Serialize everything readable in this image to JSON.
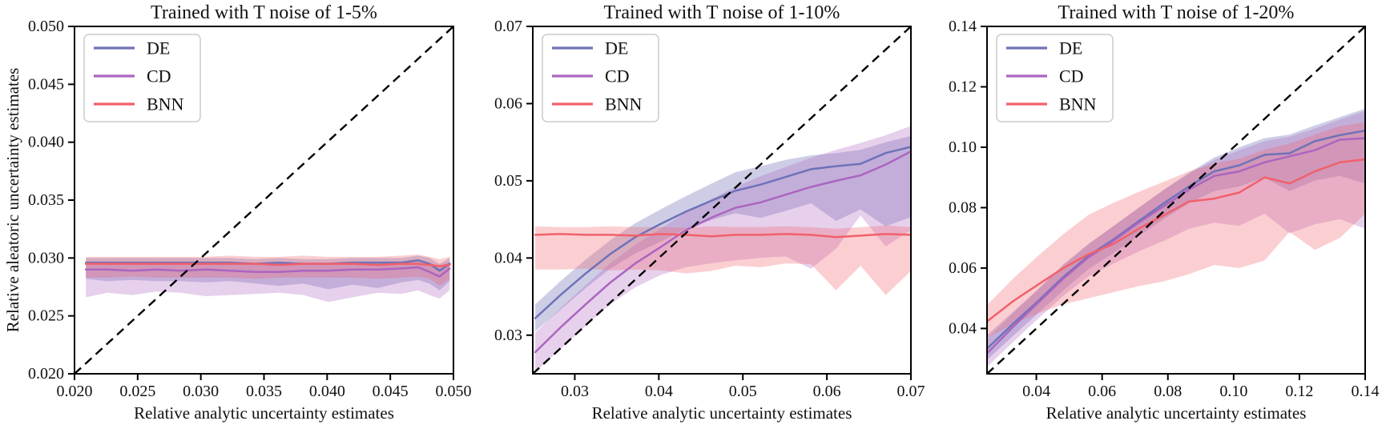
{
  "figure": {
    "background": "#ffffff",
    "text_color": "#111111",
    "axis_color": "#000000",
    "diagonal_color": "#000000"
  },
  "legend": {
    "entries": [
      {
        "label": "DE",
        "color": "#6f72b8"
      },
      {
        "label": "CD",
        "color": "#ab65bf"
      },
      {
        "label": "BNN",
        "color": "#f2606b"
      }
    ]
  },
  "chart_data": [
    {
      "type": "line",
      "title": "Trained with T noise of 1-5%",
      "xlabel": "Relative analytic uncertainty estimates",
      "ylabel": "Relative aleatoric uncertainty estimates",
      "xlim": [
        0.02,
        0.05
      ],
      "ylim": [
        0.02,
        0.05
      ],
      "grid": false,
      "legend_position": "upper-left",
      "diagonal_line": "dashed y=x",
      "xticks": {
        "values": [
          0.02,
          0.025,
          0.03,
          0.035,
          0.04,
          0.045,
          0.05
        ],
        "labels": [
          "0.020",
          "0.025",
          "0.030",
          "0.035",
          "0.040",
          "0.045",
          "0.050"
        ]
      },
      "yticks": {
        "values": [
          0.02,
          0.025,
          0.03,
          0.035,
          0.04,
          0.045,
          0.05
        ],
        "labels": [
          "0.020",
          "0.025",
          "0.030",
          "0.035",
          "0.040",
          "0.045",
          "0.050"
        ]
      },
      "x": [
        0.0209,
        0.0226,
        0.0246,
        0.0265,
        0.0284,
        0.0304,
        0.0323,
        0.0343,
        0.0362,
        0.0381,
        0.0401,
        0.042,
        0.044,
        0.0459,
        0.0472,
        0.0481,
        0.0489,
        0.0497
      ],
      "series": [
        {
          "name": "DE",
          "color": "#6f72b8",
          "band_opacity": 0.35,
          "y": [
            0.0296,
            0.0296,
            0.0296,
            0.0296,
            0.0296,
            0.0296,
            0.0296,
            0.0295,
            0.0296,
            0.0295,
            0.0295,
            0.0296,
            0.0296,
            0.0296,
            0.0298,
            0.0295,
            0.0289,
            0.0295
          ],
          "band_upper": [
            0.03,
            0.03,
            0.03,
            0.03,
            0.03,
            0.03,
            0.03,
            0.0299,
            0.03,
            0.0299,
            0.0299,
            0.03,
            0.03,
            0.03,
            0.0302,
            0.03,
            0.0295,
            0.03
          ],
          "band_lower": [
            0.0282,
            0.028,
            0.0281,
            0.028,
            0.028,
            0.0279,
            0.028,
            0.0278,
            0.0276,
            0.0278,
            0.0273,
            0.0277,
            0.0274,
            0.0279,
            0.0281,
            0.0278,
            0.0272,
            0.028
          ]
        },
        {
          "name": "CD",
          "color": "#ab65bf",
          "band_opacity": 0.3,
          "y": [
            0.029,
            0.029,
            0.0289,
            0.029,
            0.0289,
            0.029,
            0.0289,
            0.0288,
            0.0288,
            0.0289,
            0.0289,
            0.029,
            0.029,
            0.0291,
            0.0292,
            0.0288,
            0.0284,
            0.0291
          ],
          "band_upper": [
            0.0297,
            0.0297,
            0.0296,
            0.0297,
            0.0296,
            0.0297,
            0.0296,
            0.0296,
            0.0296,
            0.0296,
            0.0296,
            0.0297,
            0.0297,
            0.0297,
            0.0298,
            0.0296,
            0.0293,
            0.0297
          ],
          "band_lower": [
            0.0266,
            0.027,
            0.0268,
            0.0271,
            0.027,
            0.0267,
            0.0268,
            0.0269,
            0.027,
            0.0268,
            0.0262,
            0.0266,
            0.027,
            0.0269,
            0.0272,
            0.0268,
            0.0265,
            0.0272
          ]
        },
        {
          "name": "BNN",
          "color": "#f2606b",
          "band_opacity": 0.3,
          "y": [
            0.0295,
            0.0295,
            0.0295,
            0.0295,
            0.0295,
            0.0295,
            0.0295,
            0.0295,
            0.0294,
            0.0295,
            0.0295,
            0.0295,
            0.0294,
            0.0295,
            0.0295,
            0.0294,
            0.0293,
            0.0294
          ],
          "band_upper": [
            0.0301,
            0.0301,
            0.0301,
            0.0301,
            0.0301,
            0.0301,
            0.0302,
            0.0301,
            0.0301,
            0.0302,
            0.0301,
            0.0301,
            0.0301,
            0.0302,
            0.0303,
            0.0301,
            0.0299,
            0.0301
          ],
          "band_lower": [
            0.0283,
            0.0283,
            0.0284,
            0.0283,
            0.0283,
            0.0283,
            0.0283,
            0.0282,
            0.0283,
            0.0283,
            0.0283,
            0.0283,
            0.0282,
            0.0283,
            0.0284,
            0.0282,
            0.0276,
            0.0282
          ]
        }
      ]
    },
    {
      "type": "line",
      "title": "Trained with T noise of 1-10%",
      "xlabel": "Relative analytic uncertainty estimates",
      "ylabel": "",
      "xlim": [
        0.025,
        0.07
      ],
      "ylim": [
        0.025,
        0.07
      ],
      "grid": false,
      "legend_position": "upper-left",
      "diagonal_line": "dashed y=x",
      "xticks": {
        "values": [
          0.03,
          0.04,
          0.05,
          0.06,
          0.07
        ],
        "labels": [
          "0.03",
          "0.04",
          "0.05",
          "0.06",
          "0.07"
        ]
      },
      "yticks": {
        "values": [
          0.03,
          0.04,
          0.05,
          0.06,
          0.07
        ],
        "labels": [
          "0.03",
          "0.04",
          "0.05",
          "0.06",
          "0.07"
        ]
      },
      "x": [
        0.0253,
        0.0283,
        0.0313,
        0.0342,
        0.0372,
        0.0402,
        0.0432,
        0.0462,
        0.0491,
        0.0521,
        0.0551,
        0.0581,
        0.0611,
        0.064,
        0.067,
        0.07
      ],
      "series": [
        {
          "name": "DE",
          "color": "#6f72b8",
          "band_opacity": 0.35,
          "y": [
            0.0322,
            0.0352,
            0.038,
            0.0405,
            0.0427,
            0.0444,
            0.046,
            0.0474,
            0.0487,
            0.0495,
            0.0505,
            0.0515,
            0.0519,
            0.0522,
            0.0536,
            0.0544
          ],
          "band_upper": [
            0.034,
            0.037,
            0.0398,
            0.0423,
            0.0445,
            0.0463,
            0.048,
            0.0496,
            0.0511,
            0.0519,
            0.0527,
            0.0533,
            0.0536,
            0.054,
            0.055,
            0.0558
          ],
          "band_lower": [
            0.0305,
            0.0333,
            0.0361,
            0.0386,
            0.0406,
            0.0421,
            0.0438,
            0.0449,
            0.0458,
            0.0452,
            0.0461,
            0.0471,
            0.0448,
            0.0463,
            0.0441,
            0.0453
          ]
        },
        {
          "name": "CD",
          "color": "#ab65bf",
          "band_opacity": 0.3,
          "y": [
            0.0278,
            0.031,
            0.034,
            0.0368,
            0.0393,
            0.0414,
            0.0436,
            0.0452,
            0.0465,
            0.0472,
            0.0482,
            0.0492,
            0.05,
            0.0507,
            0.0521,
            0.0538
          ],
          "band_upper": [
            0.0303,
            0.0335,
            0.0365,
            0.0393,
            0.0417,
            0.0438,
            0.0459,
            0.0476,
            0.0492,
            0.0506,
            0.0518,
            0.053,
            0.054,
            0.0549,
            0.0559,
            0.0571
          ],
          "band_lower": [
            0.0252,
            0.0282,
            0.0312,
            0.034,
            0.0362,
            0.0378,
            0.0388,
            0.0393,
            0.0397,
            0.04,
            0.0402,
            0.0386,
            0.0412,
            0.0455,
            0.0415,
            0.0436
          ]
        },
        {
          "name": "BNN",
          "color": "#f2606b",
          "band_opacity": 0.3,
          "y": [
            0.043,
            0.0431,
            0.043,
            0.043,
            0.0429,
            0.0431,
            0.043,
            0.0428,
            0.043,
            0.043,
            0.0431,
            0.043,
            0.0427,
            0.0429,
            0.0431,
            0.043
          ],
          "band_upper": [
            0.0441,
            0.044,
            0.044,
            0.0441,
            0.044,
            0.044,
            0.0439,
            0.0441,
            0.044,
            0.044,
            0.0441,
            0.044,
            0.0438,
            0.044,
            0.0442,
            0.044
          ],
          "band_lower": [
            0.0385,
            0.0385,
            0.0386,
            0.0384,
            0.0385,
            0.0384,
            0.038,
            0.0383,
            0.039,
            0.0388,
            0.0393,
            0.0392,
            0.0358,
            0.039,
            0.0352,
            0.0383
          ]
        }
      ]
    },
    {
      "type": "line",
      "title": "Trained with T noise of 1-20%",
      "xlabel": "Relative analytic uncertainty estimates",
      "ylabel": "",
      "xlim": [
        0.025,
        0.14
      ],
      "ylim": [
        0.025,
        0.14
      ],
      "grid": false,
      "legend_position": "upper-left",
      "diagonal_line": "dashed y=x",
      "xticks": {
        "values": [
          0.04,
          0.06,
          0.08,
          0.1,
          0.12,
          0.14
        ],
        "labels": [
          "0.04",
          "0.06",
          "0.08",
          "0.10",
          "0.12",
          "0.14"
        ]
      },
      "yticks": {
        "values": [
          0.04,
          0.06,
          0.08,
          0.1,
          0.12,
          0.14
        ],
        "labels": [
          "0.04",
          "0.06",
          "0.08",
          "0.10",
          "0.12",
          "0.14"
        ]
      },
      "x": [
        0.0252,
        0.0329,
        0.0405,
        0.0482,
        0.0558,
        0.0635,
        0.0711,
        0.0788,
        0.0864,
        0.0941,
        0.1017,
        0.1094,
        0.117,
        0.1247,
        0.1323,
        0.14
      ],
      "series": [
        {
          "name": "DE",
          "color": "#6f72b8",
          "band_opacity": 0.35,
          "y": [
            0.0335,
            0.0415,
            0.049,
            0.057,
            0.064,
            0.0695,
            0.0755,
            0.0815,
            0.087,
            0.092,
            0.094,
            0.0975,
            0.098,
            0.102,
            0.104,
            0.1055
          ],
          "band_upper": [
            0.038,
            0.0455,
            0.053,
            0.0612,
            0.068,
            0.074,
            0.08,
            0.086,
            0.0916,
            0.0966,
            0.1,
            0.103,
            0.1042,
            0.1072,
            0.11,
            0.1128
          ],
          "band_lower": [
            0.0298,
            0.0375,
            0.045,
            0.0526,
            0.0596,
            0.065,
            0.0706,
            0.0762,
            0.0815,
            0.0855,
            0.087,
            0.09,
            0.0855,
            0.089,
            0.0905,
            0.088
          ]
        },
        {
          "name": "CD",
          "color": "#ab65bf",
          "band_opacity": 0.3,
          "y": [
            0.032,
            0.0405,
            0.0485,
            0.0565,
            0.0635,
            0.069,
            0.075,
            0.0805,
            0.086,
            0.0905,
            0.092,
            0.095,
            0.097,
            0.099,
            0.1025,
            0.103
          ],
          "band_upper": [
            0.0368,
            0.045,
            0.0528,
            0.0608,
            0.0678,
            0.0738,
            0.0798,
            0.0858,
            0.0912,
            0.0958,
            0.099,
            0.102,
            0.1035,
            0.1062,
            0.1092,
            0.112
          ],
          "band_lower": [
            0.0275,
            0.0355,
            0.0432,
            0.0508,
            0.0572,
            0.0615,
            0.0655,
            0.069,
            0.073,
            0.075,
            0.074,
            0.078,
            0.0715,
            0.0745,
            0.0762,
            0.073
          ]
        },
        {
          "name": "BNN",
          "color": "#f2606b",
          "band_opacity": 0.3,
          "y": [
            0.0425,
            0.049,
            0.0545,
            0.06,
            0.0645,
            0.068,
            0.073,
            0.0775,
            0.082,
            0.083,
            0.085,
            0.09,
            0.088,
            0.092,
            0.095,
            0.096
          ],
          "band_upper": [
            0.048,
            0.0565,
            0.064,
            0.0712,
            0.0776,
            0.0816,
            0.0852,
            0.0886,
            0.092,
            0.0946,
            0.0962,
            0.0992,
            0.1012,
            0.1042,
            0.107,
            0.1082
          ],
          "band_lower": [
            0.037,
            0.0415,
            0.045,
            0.048,
            0.05,
            0.052,
            0.054,
            0.0556,
            0.058,
            0.061,
            0.06,
            0.0625,
            0.072,
            0.066,
            0.07,
            0.078
          ]
        }
      ]
    }
  ]
}
